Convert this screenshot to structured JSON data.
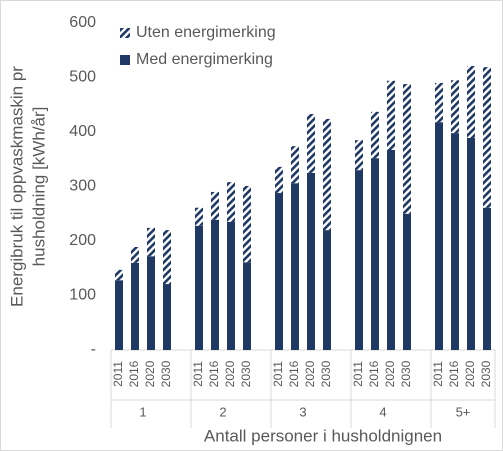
{
  "chart_data": {
    "type": "stacked-bar",
    "ylabel": [
      "Energibruk til oppvaskmaskin pr",
      "husholdning  [kWh/år]"
    ],
    "xlabel": "Antall personer i husholdnignen",
    "groups": [
      "1",
      "2",
      "3",
      "4",
      "5+"
    ],
    "categories": [
      "2011",
      "2016",
      "2020",
      "2030",
      "2011",
      "2016",
      "2020",
      "2030",
      "2011",
      "2016",
      "2020",
      "2030",
      "2011",
      "2016",
      "2020",
      "2030",
      "2011",
      "2016",
      "2020",
      "2030"
    ],
    "series": [
      {
        "name": "Uten energimerking",
        "color": "#1f3864",
        "pattern": "hatch",
        "values": [
          19,
          29,
          52,
          99,
          33,
          51,
          73,
          140,
          48,
          68,
          108,
          204,
          55,
          85,
          127,
          238,
          72,
          97,
          132,
          258
        ]
      },
      {
        "name": "Med energimerking",
        "color": "#1f3864",
        "values": [
          128,
          160,
          172,
          121,
          228,
          239,
          235,
          161,
          288,
          306,
          325,
          220,
          330,
          352,
          367,
          250,
          418,
          398,
          389,
          261
        ]
      }
    ],
    "ylim": [
      0,
      600
    ],
    "yticks": [
      {
        "value": 0,
        "label": "-"
      },
      100,
      200,
      300,
      400,
      500,
      600
    ],
    "legend": "top-left"
  }
}
